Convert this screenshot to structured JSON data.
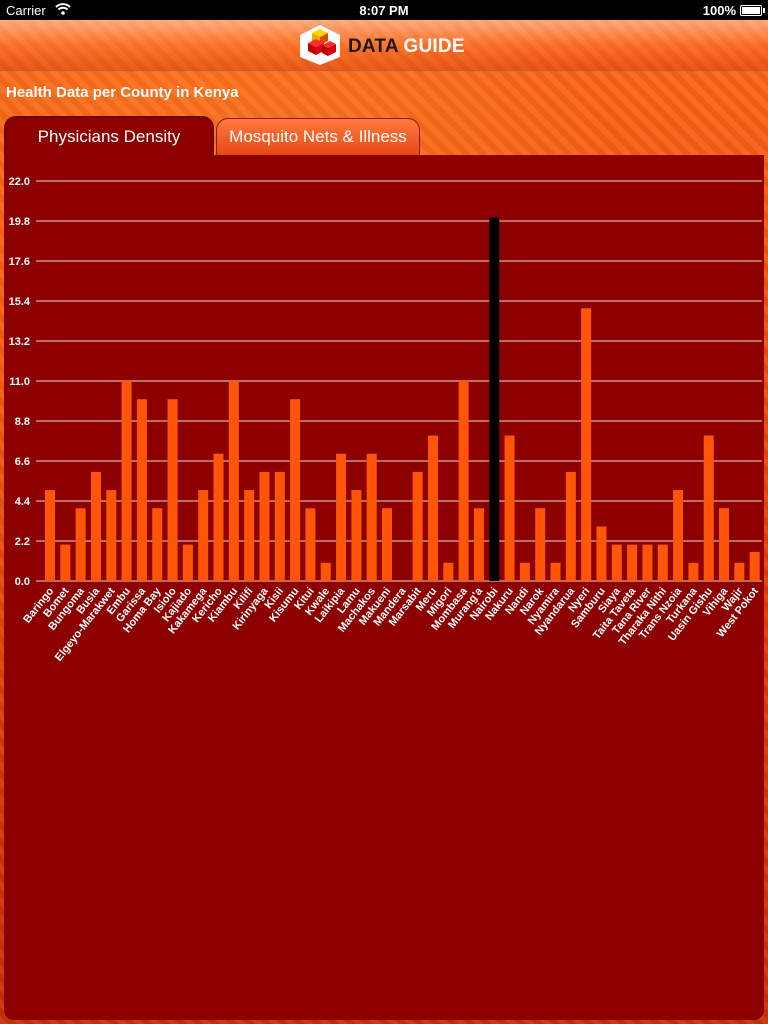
{
  "status_bar": {
    "carrier": "Carrier",
    "time": "8:07 PM",
    "battery": "100%"
  },
  "nav": {
    "title_part1": "DATA",
    "title_part2": " GUIDE"
  },
  "page_title": "Health Data per County in Kenya",
  "tabs": [
    {
      "label": "Physicians Density",
      "selected": true
    },
    {
      "label": "Mosquito Nets & Illness",
      "selected": false
    }
  ],
  "colors": {
    "panel_bg": "#8c0000",
    "bar": "#ff5508",
    "highlight_bar": "#000000",
    "grid": "#ffffff"
  },
  "chart_data": {
    "type": "bar",
    "title": "Physicians Density",
    "xlabel": "",
    "ylabel": "",
    "ylim": [
      0,
      22
    ],
    "y_ticks": [
      "0.0",
      "2.2",
      "4.4",
      "6.6",
      "8.8",
      "11.0",
      "13.2",
      "15.4",
      "17.6",
      "19.8",
      "22.0"
    ],
    "highlighted_category": "Nairobi",
    "categories": [
      "Baringo",
      "Bomet",
      "Bungoma",
      "Busia",
      "Elgeyo-Marakwet",
      "Embu",
      "Garissa",
      "Homa Bay",
      "Isiolo",
      "Kajiado",
      "Kakamega",
      "Kericho",
      "Kiambu",
      "Kilifi",
      "Kirinyaga",
      "Kisii",
      "Kisumu",
      "Kitui",
      "Kwale",
      "Laikipia",
      "Lamu",
      "Machakos",
      "Makueni",
      "Mandera",
      "Marsabit",
      "Meru",
      "Migori",
      "Mombasa",
      "Murang'a",
      "Nairobi",
      "Nakuru",
      "Nandi",
      "Narok",
      "Nyamira",
      "Nyandarua",
      "Nyeri",
      "Samburu",
      "Siaya",
      "Taita Taveta",
      "Tana River",
      "Tharaka Nithi",
      "Trans Nzoia",
      "Turkana",
      "Uasin Gishu",
      "Vihiga",
      "Wajir",
      "West Pokot"
    ],
    "values": [
      5,
      2,
      4,
      6,
      5,
      11,
      10,
      4,
      10,
      2,
      5,
      7,
      11,
      5,
      6,
      6,
      10,
      4,
      1,
      7,
      5,
      7,
      4,
      0,
      6,
      8,
      1,
      11,
      4,
      20,
      8,
      1,
      4,
      1,
      6,
      15,
      3,
      2,
      2,
      2,
      2,
      5,
      1,
      8,
      4,
      1,
      1.6
    ]
  }
}
